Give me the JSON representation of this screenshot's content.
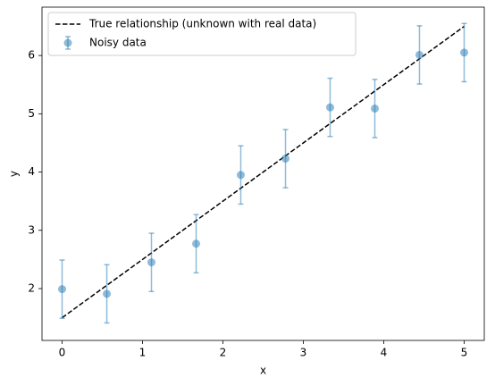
{
  "chart_data": {
    "type": "errorbar",
    "xlabel": "x",
    "ylabel": "y",
    "xlim": [
      -0.25,
      5.25
    ],
    "xticks": [
      0,
      1,
      2,
      3,
      4,
      5
    ],
    "ylim": [
      1.11,
      6.83
    ],
    "yticks": [
      2,
      3,
      4,
      5,
      6
    ],
    "legend": "upper left",
    "series": [
      {
        "name": "True relationship (unknown with real data)",
        "color": "#000000",
        "linestyle": "dashed",
        "x": [
          0,
          5
        ],
        "values": [
          1.5,
          6.5
        ]
      },
      {
        "name": "Noisy data",
        "color": "#1f77b4",
        "marker": "o",
        "x": [
          0,
          0.556,
          1.111,
          1.667,
          2.222,
          2.778,
          3.333,
          3.889,
          4.444,
          5
        ],
        "values": [
          1.99,
          1.91,
          2.45,
          2.77,
          3.95,
          4.23,
          5.11,
          5.09,
          6.01,
          6.05
        ],
        "errors": [
          0.5,
          0.5,
          0.5,
          0.5,
          0.5,
          0.5,
          0.5,
          0.5,
          0.5,
          0.5
        ]
      }
    ]
  }
}
